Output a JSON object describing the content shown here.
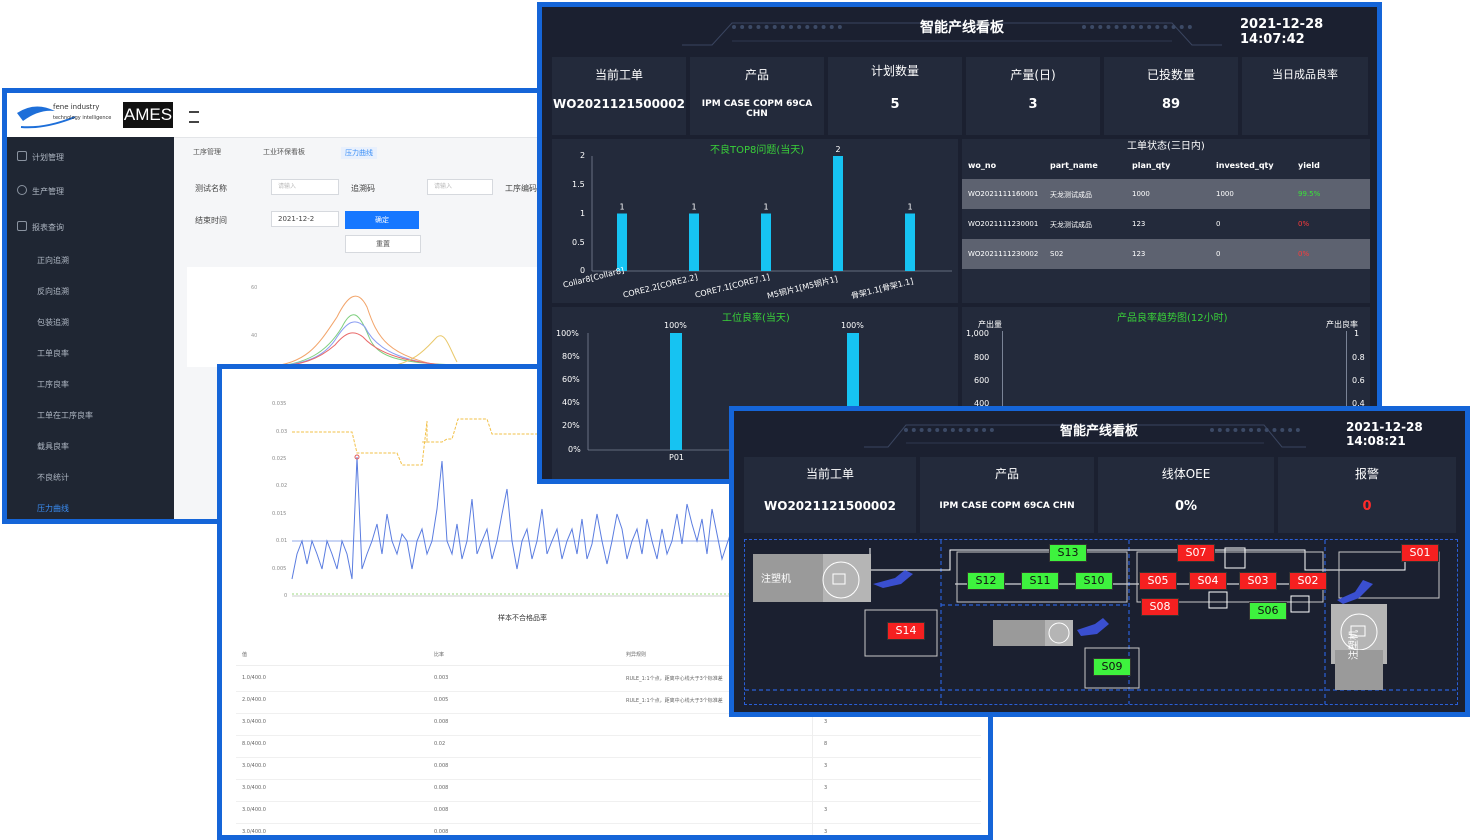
{
  "admin": {
    "logo_text": "AMES",
    "logo_sub_lines": [
      "fene industry",
      "technology intelligence"
    ],
    "menu": [
      {
        "label": "计划管理"
      },
      {
        "label": "生产管理"
      },
      {
        "label": "报表查询"
      }
    ],
    "submenu": [
      "正向追溯",
      "反向追溯",
      "包装追溯",
      "工单良率",
      "工序良率",
      "工单在工序良率",
      "载具良率",
      "不良统计",
      "压力曲线"
    ],
    "tabs": [
      "工序管理",
      "工业环保看板",
      "压力曲线"
    ],
    "filter": {
      "test_name_label": "测试名称",
      "test_name_placeholder": "请输入",
      "trace_code_label": "追溯码",
      "trace_code_placeholder": "请输入",
      "work_order_label": "工序编码",
      "end_time_label": "结束时间",
      "end_time_value": "2021-12-2",
      "confirm_button": "确定",
      "reset_button": "重置"
    },
    "chart_y_ticks": [
      "60",
      "40",
      "20"
    ]
  },
  "spc": {
    "y_ticks": [
      "0.035",
      "0.03",
      "0.025",
      "0.02",
      "0.015",
      "0.01",
      "0.005",
      "0"
    ],
    "x_title": "样本不合格品率",
    "table": {
      "headers": [
        "值",
        "比率",
        "判异规则"
      ],
      "rows": [
        {
          "v": "1.0/400.0",
          "r": "0.003",
          "rule": "RULE_1:1个点，距离中心线大于3个标准差"
        },
        {
          "v": "2.0/400.0",
          "r": "0.005",
          "rule": "RULE_1:1个点，距离中心线大于3个标准差"
        },
        {
          "v": "3.0/400.0",
          "r": "0.008",
          "rule": ""
        },
        {
          "v": "8.0/400.0",
          "r": "0.02",
          "rule": ""
        },
        {
          "v": "3.0/400.0",
          "r": "0.008",
          "rule": ""
        },
        {
          "v": "3.0/400.0",
          "r": "0.008",
          "rule": ""
        },
        {
          "v": "3.0/400.0",
          "r": "0.008",
          "rule": ""
        },
        {
          "v": "3.0/400.0",
          "r": "0.008",
          "rule": ""
        }
      ],
      "extra_col": [
        "3",
        "8",
        "3",
        "3",
        "3",
        "3"
      ]
    }
  },
  "board1": {
    "title": "智能产线看板",
    "time": "2021-12-28 14:07:42",
    "kpis": [
      {
        "label": "当前工单",
        "value": "WO2021121500002"
      },
      {
        "label": "产品",
        "value": "IPM CASE COPM 69CA CHN"
      },
      {
        "label": "计划数量",
        "value": "5"
      },
      {
        "label": "产量(日)",
        "value": "3"
      },
      {
        "label": "已投数量",
        "value": "89"
      },
      {
        "label": "当日成品良率",
        "value": ""
      }
    ],
    "top8": {
      "title": "不良TOP8问题(当天)",
      "y_ticks": [
        "2",
        "1.5",
        "1",
        "0.5",
        "0"
      ],
      "ylim": [
        0,
        2
      ],
      "categories": [
        "Collar8[Collar8]",
        "CORE2.2[CORE2.2]",
        "CORE7.1[CORE7.1]",
        "M5铜片1[M5铜片1]",
        "骨架1.1[骨架1.1]"
      ],
      "values": [
        1,
        1,
        1,
        2,
        1
      ],
      "color": "#16c3f2"
    },
    "status": {
      "title": "工单状态(三日内)",
      "headers": [
        "wo_no",
        "part_name",
        "plan_qty",
        "invested_qty",
        "yield"
      ],
      "rows": [
        {
          "wo_no": "WO2021111160001",
          "part_name": "天龙测试成品",
          "plan_qty": "1000",
          "invested_qty": "1000",
          "yield": "99.5%"
        },
        {
          "wo_no": "WO2021111230001",
          "part_name": "天龙测试成品",
          "plan_qty": "123",
          "invested_qty": "0",
          "yield": "0%"
        },
        {
          "wo_no": "WO2021111230002",
          "part_name": "S02",
          "plan_qty": "123",
          "invested_qty": "0",
          "yield": "0%"
        }
      ]
    },
    "station": {
      "title": "工位良率(当天)",
      "y_ticks": [
        "100%",
        "80%",
        "60%",
        "40%",
        "20%",
        "0%"
      ],
      "categories": [
        "P01",
        ""
      ],
      "values": [
        100,
        100
      ],
      "labels": [
        "100%",
        "100%"
      ]
    },
    "trend": {
      "title": "产品良率趋势图(12小时)",
      "left_label": "产出量",
      "right_label": "产出良率",
      "left_ticks": [
        "1,000",
        "800",
        "600",
        "400"
      ],
      "right_ticks": [
        "1",
        "0.8",
        "0.6",
        "0.4"
      ]
    }
  },
  "board2": {
    "title": "智能产线看板",
    "time": "2021-12-28 14:08:21",
    "kpis": [
      {
        "label": "当前工单",
        "value": "WO2021121500002"
      },
      {
        "label": "产品",
        "value": "IPM CASE COPM 69CA CHN"
      },
      {
        "label": "线体OEE",
        "value": "0%"
      },
      {
        "label": "报警",
        "value": "0"
      }
    ],
    "alarm_color": "#ff2a2a",
    "machine_labels": [
      "注塑机",
      "注塑机"
    ],
    "stations": [
      {
        "id": "S13",
        "status": "ok"
      },
      {
        "id": "S12",
        "status": "ok"
      },
      {
        "id": "S11",
        "status": "ok"
      },
      {
        "id": "S10",
        "status": "ok"
      },
      {
        "id": "S07",
        "status": "alarm"
      },
      {
        "id": "S05",
        "status": "alarm"
      },
      {
        "id": "S04",
        "status": "alarm"
      },
      {
        "id": "S03",
        "status": "alarm"
      },
      {
        "id": "S02",
        "status": "alarm"
      },
      {
        "id": "S01",
        "status": "alarm"
      },
      {
        "id": "S08",
        "status": "alarm"
      },
      {
        "id": "S06",
        "status": "ok"
      },
      {
        "id": "S14",
        "status": "alarm"
      },
      {
        "id": "S09",
        "status": "ok"
      }
    ]
  }
}
